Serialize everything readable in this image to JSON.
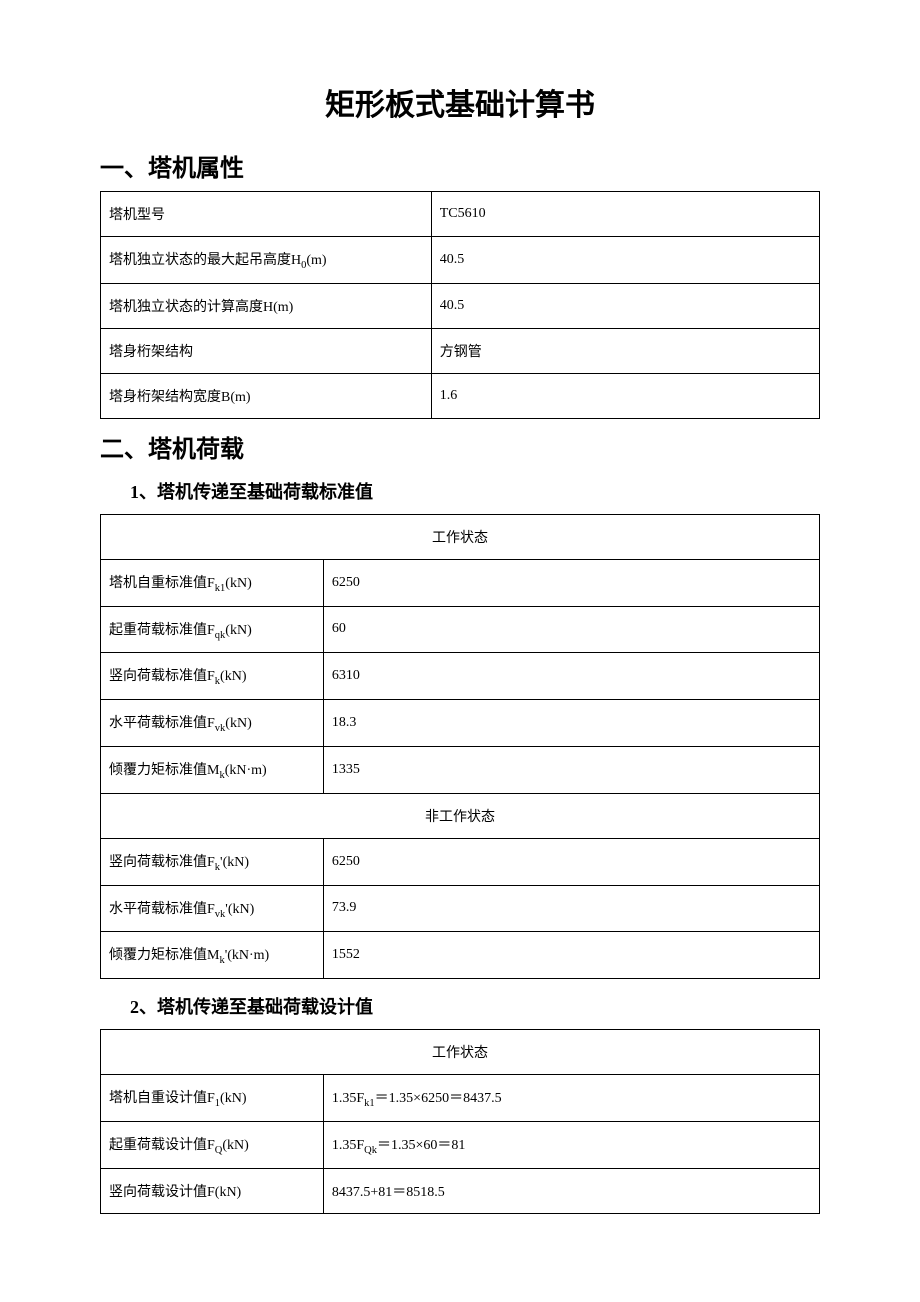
{
  "title": "矩形板式基础计算书",
  "section1": {
    "heading": "一、塔机属性",
    "rows": [
      {
        "label": "塔机型号",
        "value": "TC5610"
      },
      {
        "label": "塔机独立状态的最大起吊高度H₀(m)",
        "value": "40.5"
      },
      {
        "label": "塔机独立状态的计算高度H(m)",
        "value": "40.5"
      },
      {
        "label": "塔身桁架结构",
        "value": "方钢管"
      },
      {
        "label": "塔身桁架结构宽度B(m)",
        "value": "1.6"
      }
    ]
  },
  "section2": {
    "heading": "二、塔机荷载",
    "sub1": {
      "heading": "1、塔机传递至基础荷载标准值",
      "workingHeader": "工作状态",
      "nonWorkingHeader": "非工作状态",
      "workingRows": [
        {
          "label": "塔机自重标准值Fk1(kN)",
          "value": "6250"
        },
        {
          "label": "起重荷载标准值Fqk(kN)",
          "value": "60"
        },
        {
          "label": "竖向荷载标准值Fk(kN)",
          "value": "6310"
        },
        {
          "label": "水平荷载标准值Fvk(kN)",
          "value": "18.3"
        },
        {
          "label": "倾覆力矩标准值Mk(kN·m)",
          "value": "1335"
        }
      ],
      "nonWorkingRows": [
        {
          "label": "竖向荷载标准值Fk'(kN)",
          "value": "6250"
        },
        {
          "label": "水平荷载标准值Fvk'(kN)",
          "value": "73.9"
        },
        {
          "label": "倾覆力矩标准值Mk'(kN·m)",
          "value": "1552"
        }
      ]
    },
    "sub2": {
      "heading": "2、塔机传递至基础荷载设计值",
      "workingHeader": "工作状态",
      "rows": [
        {
          "label": "塔机自重设计值F1(kN)",
          "value": "1.35Fk1＝1.35×6250＝8437.5"
        },
        {
          "label": "起重荷载设计值FQ(kN)",
          "value": "1.35FQk＝1.35×60＝81"
        },
        {
          "label": "竖向荷载设计值F(kN)",
          "value": "8437.5+81＝8518.5"
        }
      ]
    }
  }
}
